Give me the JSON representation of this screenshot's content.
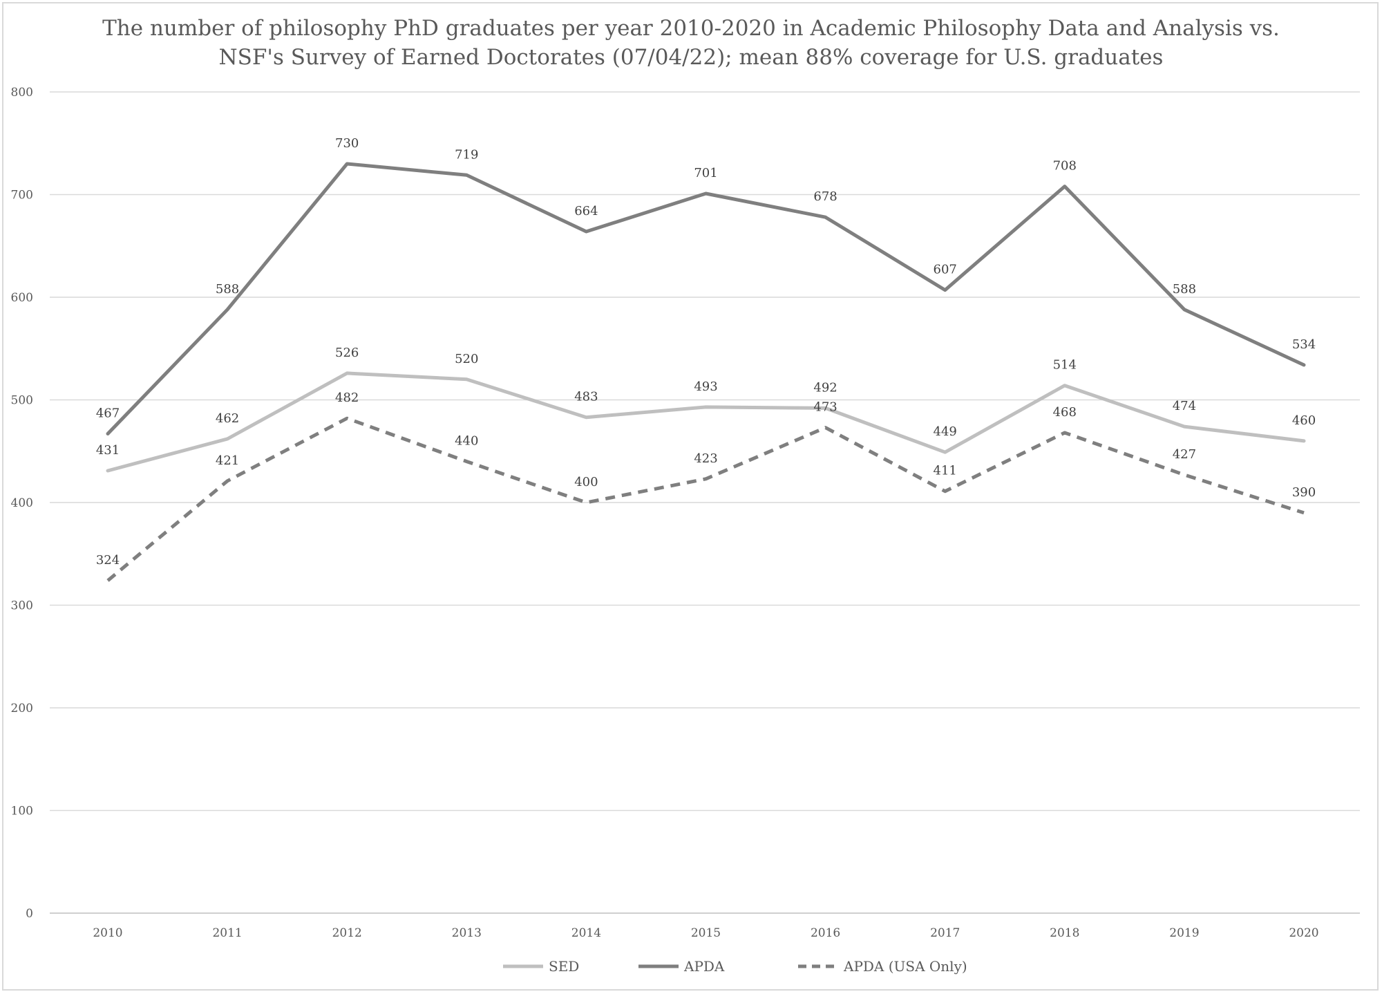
{
  "chart_data": {
    "type": "line",
    "title_lines": [
      "The number of philosophy PhD graduates per year 2010-2020 in Academic Philosophy Data and Analysis vs.",
      "NSF's Survey of Earned Doctorates  (07/04/22); mean 88% coverage for U.S. graduates"
    ],
    "x": [
      "2010",
      "2011",
      "2012",
      "2013",
      "2014",
      "2015",
      "2016",
      "2017",
      "2018",
      "2019",
      "2020"
    ],
    "ylim": [
      0,
      800
    ],
    "y_ticks": [
      0,
      100,
      200,
      300,
      400,
      500,
      600,
      700,
      800
    ],
    "grid": true,
    "legend_position": "bottom",
    "data_labels": true,
    "series": [
      {
        "name": "SED",
        "values": [
          431,
          462,
          526,
          520,
          483,
          493,
          492,
          449,
          514,
          474,
          460
        ],
        "color": "#bfbfbf",
        "dash": "solid",
        "label_position": "above"
      },
      {
        "name": "APDA",
        "values": [
          467,
          588,
          730,
          719,
          664,
          701,
          678,
          607,
          708,
          588,
          534
        ],
        "color": "#7f7f7f",
        "dash": "solid",
        "label_position": "above"
      },
      {
        "name": "APDA (USA Only)",
        "values": [
          324,
          421,
          482,
          440,
          400,
          423,
          473,
          411,
          468,
          427,
          390
        ],
        "color": "#7f7f7f",
        "dash": "dashed",
        "label_position": "above"
      }
    ]
  }
}
